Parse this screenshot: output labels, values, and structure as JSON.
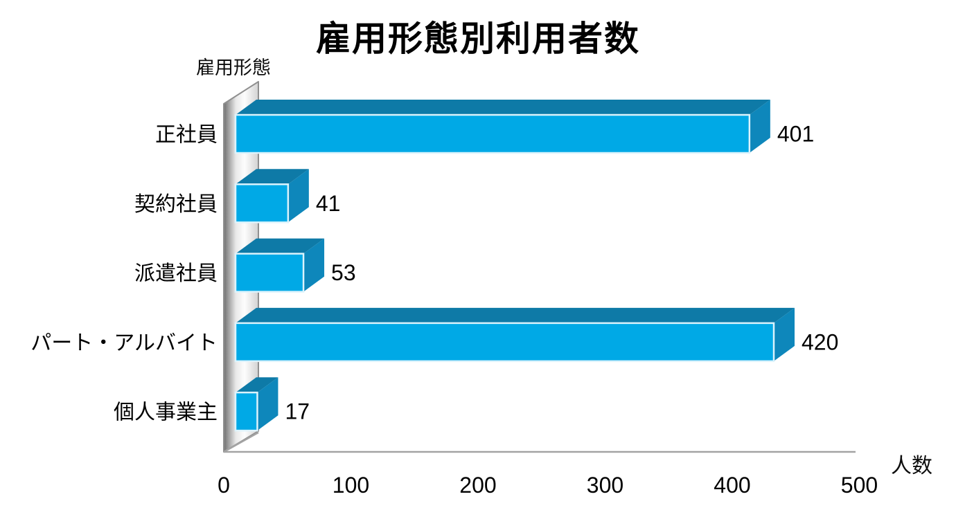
{
  "title": "雇用形態別利用者数",
  "axis": {
    "y_label": "雇用形態",
    "x_label": "人数"
  },
  "chart_data": {
    "type": "bar",
    "orientation": "horizontal",
    "style": "3d",
    "title": "雇用形態別利用者数",
    "xlabel": "人数",
    "ylabel": "雇用形態",
    "categories": [
      "正社員",
      "契約社員",
      "派遣社員",
      "パート・アルバイト",
      "個人事業主"
    ],
    "values": [
      401,
      41,
      53,
      420,
      17
    ],
    "data_labels": [
      "401",
      "41",
      "53",
      "420",
      "17"
    ],
    "xlim": [
      0,
      500
    ],
    "x_ticks": [
      "0",
      "100",
      "200",
      "300",
      "400",
      "500"
    ],
    "grid": false,
    "legend": false,
    "colors": {
      "bar_front": "#00A9E6",
      "bar_top": "#0E7AA7",
      "bar_side": "#0E87BB",
      "bar_edge_highlight": "#DCF3FC",
      "wall_dark": "#6F6F6F",
      "wall_light": "#FDFDFD",
      "axis_line": "#A3A3A3",
      "text": "#000000"
    }
  }
}
